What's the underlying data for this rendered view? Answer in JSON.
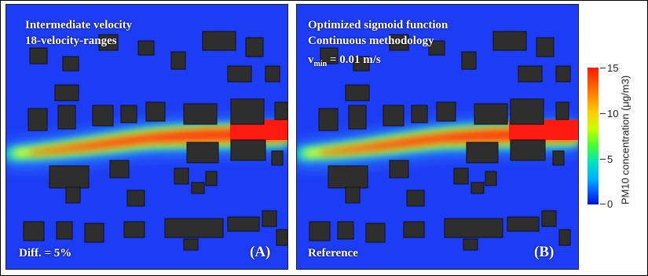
{
  "panels": {
    "a": {
      "line1": "Intermediate velocity",
      "line2": "18-velocity-ranges",
      "bottom_left": "Diff. = 5%",
      "tag": "(A)"
    },
    "b": {
      "line1": "Optimized sigmoid function",
      "line2": "Continuous methodology",
      "vmin_symbol": "v",
      "vmin_sub": "min",
      "vmin_value": " = 0.01 m/s",
      "bottom_left": "Reference",
      "tag": "(B)"
    }
  },
  "colorbar": {
    "title": "PM10 concentration (μg/m3)",
    "ticks": [
      "15",
      "10",
      "5",
      "0"
    ],
    "colors": [
      "#ff1a00",
      "#ffd000",
      "#3cff3c",
      "#00aaff",
      "#0010c8"
    ]
  }
}
